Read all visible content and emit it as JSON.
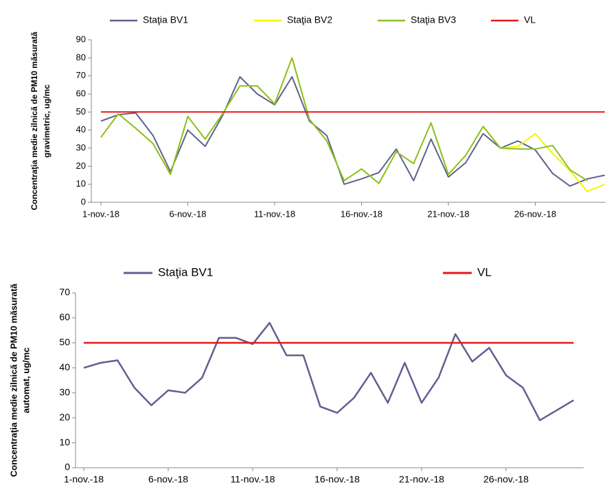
{
  "chart_data": [
    {
      "type": "line",
      "ylabel": [
        "Concentraţia medie zilnică de PM10 măsurată",
        "gravimetric, ug/mc"
      ],
      "categories": [
        "1-nov.-18",
        null,
        null,
        null,
        null,
        "6-nov.-18",
        null,
        null,
        null,
        null,
        "11-nov.-18",
        null,
        null,
        null,
        null,
        "16-nov.-18",
        null,
        null,
        null,
        null,
        "21-nov.-18",
        null,
        null,
        null,
        null,
        "26-nov.-18",
        null,
        null,
        null,
        null
      ],
      "series": [
        {
          "name": "Staţia BV1",
          "color": "#5f5f8f",
          "values": [
            45,
            48.5,
            49.5,
            37,
            17,
            40,
            31,
            48,
            69.5,
            60,
            54,
            69.5,
            45,
            37,
            10,
            13,
            16.5,
            29.5,
            12,
            35,
            14,
            22,
            38,
            30,
            34,
            29,
            16,
            9,
            13,
            15
          ]
        },
        {
          "name": "Staţia BV2",
          "color": "#f5f500",
          "values": [
            36,
            49,
            41,
            32.5,
            15.5,
            47.5,
            35,
            49,
            64.5,
            64.5,
            54.5,
            80,
            46,
            34,
            12,
            18.5,
            10.5,
            28,
            21.5,
            44,
            15.5,
            26,
            42,
            30,
            31,
            38,
            27,
            17.5,
            6,
            10
          ]
        },
        {
          "name": "Staţia BV3",
          "color": "#8cbf26",
          "values": [
            36,
            49,
            41,
            32.5,
            15.5,
            47.5,
            35,
            49,
            64.5,
            64.5,
            54.5,
            80,
            46,
            34,
            12,
            18.5,
            10.5,
            28,
            21.5,
            44,
            15.5,
            26,
            42,
            30,
            29.5,
            29.5,
            31.5,
            18,
            12,
            null
          ]
        },
        {
          "name": "VL",
          "color": "#e8161a",
          "values": [
            50,
            50,
            50,
            50,
            50,
            50,
            50,
            50,
            50,
            50,
            50,
            50,
            50,
            50,
            50,
            50,
            50,
            50,
            50,
            50,
            50,
            50,
            50,
            50,
            50,
            50,
            50,
            50,
            50,
            50
          ]
        }
      ],
      "ylim": [
        0,
        90
      ],
      "yticks": [
        0,
        10,
        20,
        30,
        40,
        50,
        60,
        70,
        80,
        90
      ]
    },
    {
      "type": "line",
      "ylabel": [
        "Concentraţia medie zilnică de PM10 măsurată",
        "automat, ug/mc"
      ],
      "categories": [
        "1-nov.-18",
        null,
        null,
        null,
        null,
        "6-nov.-18",
        null,
        null,
        null,
        null,
        "11-nov.-18",
        null,
        null,
        null,
        null,
        "16-nov.-18",
        null,
        null,
        null,
        null,
        "21-nov.-18",
        null,
        null,
        null,
        null,
        "26-nov.-18",
        null,
        null,
        null,
        null
      ],
      "series": [
        {
          "name": "Staţia BV1",
          "color": "#5f5f8f",
          "values": [
            40,
            42,
            43,
            32,
            25,
            31,
            30,
            36,
            52,
            52,
            49.5,
            58,
            45,
            45,
            24.5,
            22,
            28,
            38,
            26,
            42,
            26,
            36,
            53.5,
            42.5,
            48,
            37,
            32,
            19,
            23,
            27
          ]
        },
        {
          "name": "VL",
          "color": "#e8161a",
          "values": [
            50,
            50,
            50,
            50,
            50,
            50,
            50,
            50,
            50,
            50,
            50,
            50,
            50,
            50,
            50,
            50,
            50,
            50,
            50,
            50,
            50,
            50,
            50,
            50,
            50,
            50,
            50,
            50,
            50,
            50
          ]
        }
      ],
      "ylim": [
        0,
        70
      ],
      "yticks": [
        0,
        10,
        20,
        30,
        40,
        50,
        60,
        70
      ]
    }
  ]
}
